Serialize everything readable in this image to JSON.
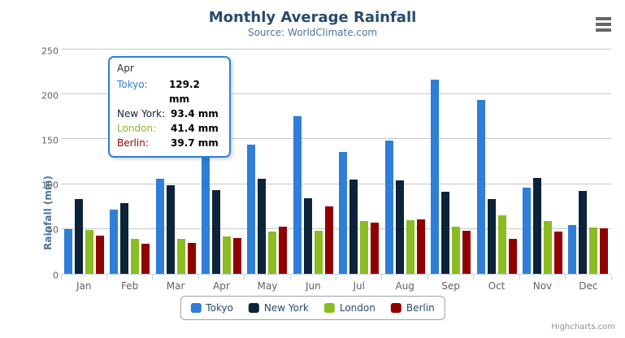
{
  "chart": {
    "title": "Monthly Average Rainfall",
    "subtitle": "Source: WorldClimate.com",
    "credits": "Highcharts.com"
  },
  "chart_data": {
    "type": "bar",
    "title": "Monthly Average Rainfall",
    "subtitle": "Source: WorldClimate.com",
    "categories": [
      "Jan",
      "Feb",
      "Mar",
      "Apr",
      "May",
      "Jun",
      "Jul",
      "Aug",
      "Sep",
      "Oct",
      "Nov",
      "Dec"
    ],
    "series": [
      {
        "name": "Tokyo",
        "color": "#2f7ed8",
        "values": [
          49.9,
          71.5,
          106.4,
          129.2,
          144.0,
          176.0,
          135.6,
          148.5,
          216.4,
          194.1,
          95.6,
          54.4
        ]
      },
      {
        "name": "New York",
        "color": "#0d233a",
        "values": [
          83.6,
          78.8,
          98.5,
          93.4,
          106.0,
          84.5,
          105.0,
          104.3,
          91.2,
          83.5,
          106.6,
          92.3
        ]
      },
      {
        "name": "London",
        "color": "#8bbc21",
        "values": [
          48.9,
          38.8,
          39.3,
          41.4,
          47.0,
          48.3,
          59.0,
          59.6,
          52.4,
          65.2,
          59.3,
          51.2
        ]
      },
      {
        "name": "Berlin",
        "color": "#910000",
        "values": [
          42.4,
          33.2,
          34.5,
          39.7,
          52.6,
          75.5,
          57.4,
          60.4,
          47.6,
          39.1,
          46.8,
          51.1
        ]
      }
    ],
    "xlabel": "",
    "ylabel": "Rainfall (mm)",
    "ylim": [
      0,
      250
    ],
    "yticks": [
      0,
      50,
      100,
      150,
      200,
      250
    ],
    "grid": true,
    "legend_position": "bottom"
  },
  "tooltip": {
    "category": "Apr",
    "border_color": "#2f7ed8",
    "rows": [
      {
        "series": "Tokyo",
        "label": "Tokyo:",
        "value": "129.2 mm"
      },
      {
        "series": "New York",
        "label": "New York:",
        "value": "93.4 mm"
      },
      {
        "series": "London",
        "label": "London:",
        "value": "41.4 mm"
      },
      {
        "series": "Berlin",
        "label": "Berlin:",
        "value": "39.7 mm"
      }
    ]
  },
  "colors": {
    "grid": "#c8c8c8",
    "axis_line": "#c0d0e0",
    "title": "#274b6d",
    "subtitle": "#4d759e",
    "axis_label": "#606060"
  }
}
